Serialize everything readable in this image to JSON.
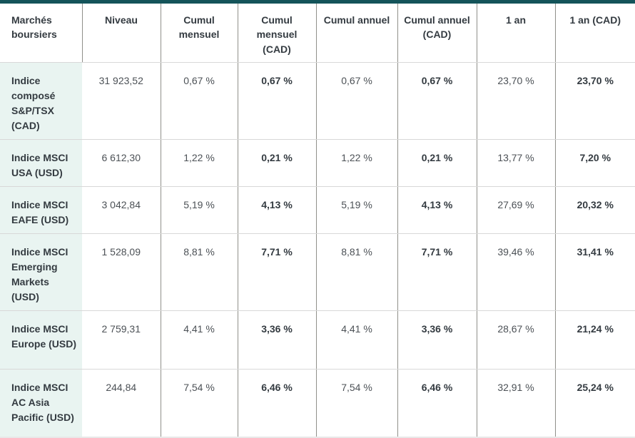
{
  "style": {
    "accent_color": "#14545a",
    "row_header_bg": "#e9f4f1",
    "vertical_border_color": "#90908a",
    "horizontal_border_color": "#d8d8d8"
  },
  "chart_data": {
    "type": "table",
    "title": "Marchés boursiers",
    "columns": [
      "Marchés boursiers",
      "Niveau",
      "Cumul mensuel",
      "Cumul mensuel (CAD)",
      "Cumul annuel",
      "Cumul annuel (CAD)",
      "1 an",
      "1 an (CAD)"
    ],
    "bold_column_marker": "(CAD)",
    "rows": [
      {
        "label": "Indice composé S&P/TSX (CAD)",
        "values": [
          "31 923,52",
          "0,67 %",
          "0,67 %",
          "0,67 %",
          "0,67 %",
          "23,70 %",
          "23,70 %"
        ]
      },
      {
        "label": "Indice MSCI USA (USD)",
        "values": [
          "6 612,30",
          "1,22 %",
          "0,21 %",
          "1,22 %",
          "0,21 %",
          "13,77 %",
          "7,20 %"
        ]
      },
      {
        "label": "Indice MSCI EAFE (USD)",
        "values": [
          "3 042,84",
          "5,19 %",
          "4,13 %",
          "5,19 %",
          "4,13 %",
          "27,69 %",
          "20,32 %"
        ]
      },
      {
        "label": "Indice MSCI Emerging Markets (USD)",
        "values": [
          "1 528,09",
          "8,81 %",
          "7,71 %",
          "8,81 %",
          "7,71 %",
          "39,46 %",
          "31,41 %"
        ]
      },
      {
        "label": "Indice MSCI Europe (USD)",
        "values": [
          "2 759,31",
          "4,41 %",
          "3,36 %",
          "4,41 %",
          "3,36 %",
          "28,67 %",
          "21,24 %"
        ]
      },
      {
        "label": "Indice MSCI AC Asia Pacific (USD)",
        "values": [
          "244,84",
          "7,54 %",
          "6,46 %",
          "7,54 %",
          "6,46 %",
          "32,91 %",
          "25,24 %"
        ]
      }
    ]
  }
}
